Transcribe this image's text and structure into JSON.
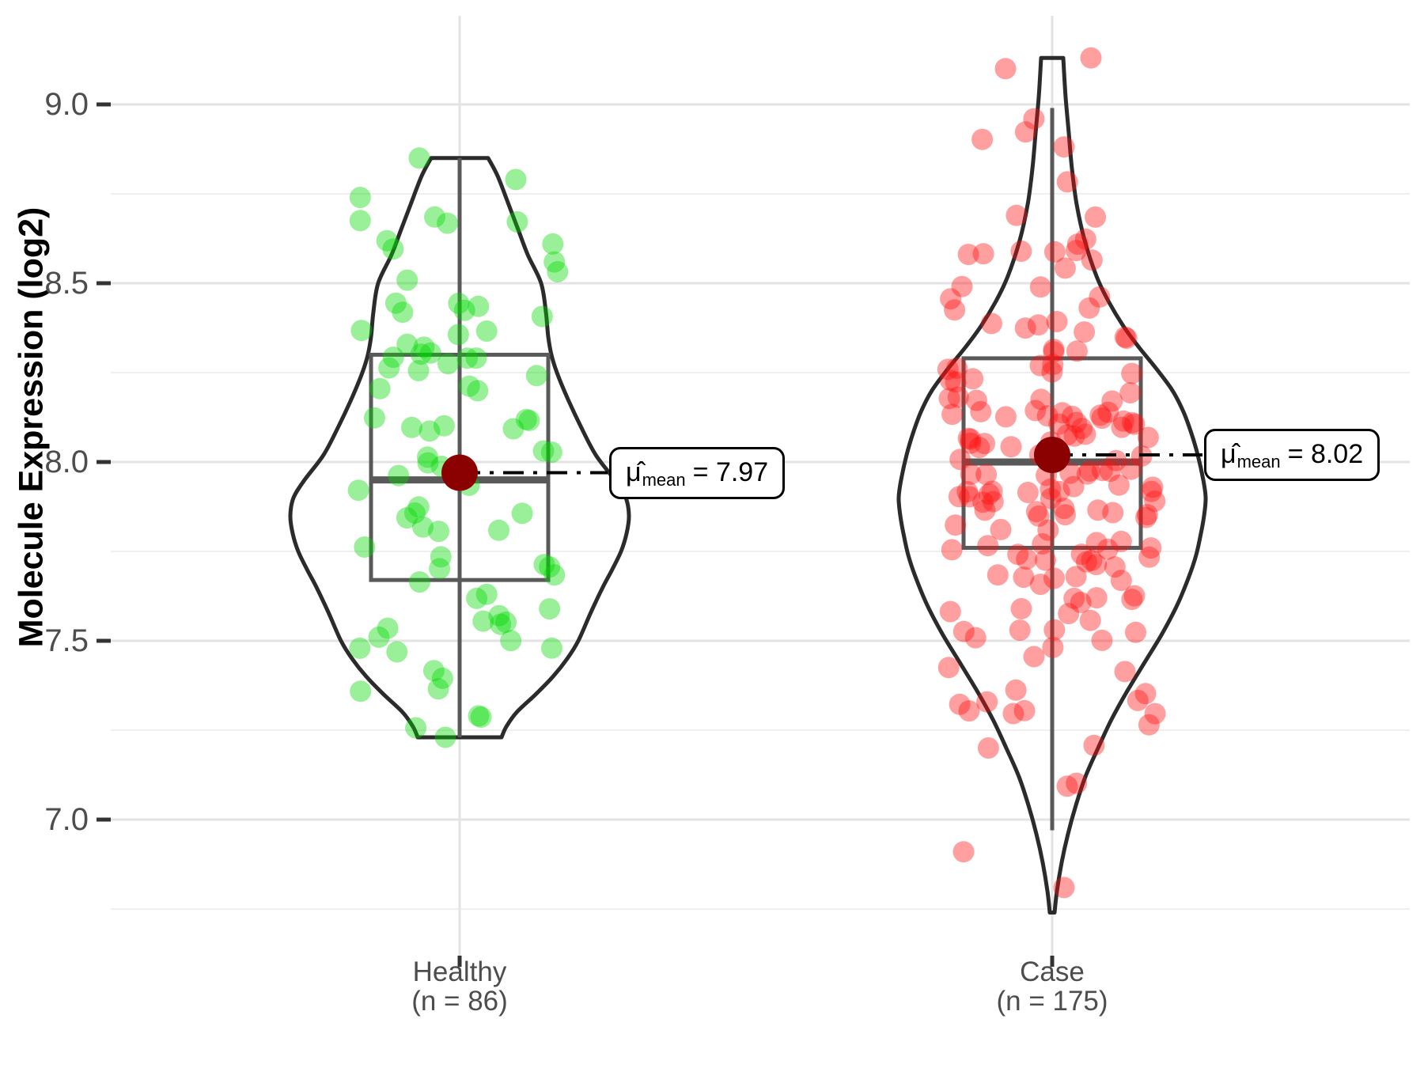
{
  "figure": {
    "background": "#ffffff"
  },
  "y_axis": {
    "title": "Molecule Expression (log2)",
    "tick_labels": [
      "9.0",
      "8.5",
      "8.0",
      "7.5",
      "7.0"
    ],
    "tick_values": [
      9.0,
      8.5,
      8.0,
      7.5,
      7.0
    ],
    "minor_values": [
      8.75,
      8.25,
      7.75,
      7.25,
      6.75
    ],
    "text_color": "#4d4d4d"
  },
  "x_axis": {
    "categories": [
      {
        "label": "Healthy",
        "sub_label": "(n = 86)"
      },
      {
        "label": "Case",
        "sub_label": "(n = 175)"
      }
    ],
    "text_color": "#4d4d4d"
  },
  "annotations": [
    {
      "symbol": "μ̂",
      "subscript": "mean",
      "rest": "= 7.97"
    },
    {
      "symbol": "μ̂",
      "subscript": "mean",
      "rest": "= 8.02"
    }
  ],
  "chart_data": {
    "type": "violin+boxplot+jitter",
    "title": "",
    "xlabel": "",
    "ylabel": "Molecule Expression (log2)",
    "ylim": [
      6.55,
      9.3
    ],
    "grid": true,
    "legend": false,
    "groups": [
      {
        "name": "Healthy",
        "n": 86,
        "mean": 7.97,
        "median": 7.95,
        "q1": 7.67,
        "q3": 8.3,
        "whisker_low": 7.23,
        "whisker_high": 8.85,
        "data_min": 7.23,
        "data_max": 8.85,
        "point_color": "#00d900",
        "violin_profile": [
          [
            8.85,
            36
          ],
          [
            8.8,
            48
          ],
          [
            8.72,
            62
          ],
          [
            8.65,
            74
          ],
          [
            8.58,
            86
          ],
          [
            8.5,
            103
          ],
          [
            8.42,
            109
          ],
          [
            8.35,
            112
          ],
          [
            8.3,
            116
          ],
          [
            8.25,
            123
          ],
          [
            8.18,
            136
          ],
          [
            8.1,
            153
          ],
          [
            8.02,
            172
          ],
          [
            7.95,
            196
          ],
          [
            7.9,
            210
          ],
          [
            7.85,
            214
          ],
          [
            7.8,
            211
          ],
          [
            7.75,
            204
          ],
          [
            7.7,
            193
          ],
          [
            7.65,
            181
          ],
          [
            7.58,
            166
          ],
          [
            7.5,
            150
          ],
          [
            7.45,
            136
          ],
          [
            7.4,
            118
          ],
          [
            7.35,
            96
          ],
          [
            7.3,
            72
          ],
          [
            7.26,
            59
          ],
          [
            7.23,
            53
          ]
        ],
        "pinned_points": [
          [
            8.85,
            -51
          ],
          [
            8.79,
            71
          ],
          [
            7.23,
            -18
          ],
          [
            7.29,
            24
          ]
        ],
        "point_distribution": {
          "mean": 7.95,
          "sd": 0.38,
          "min": 7.25,
          "max": 8.83
        }
      },
      {
        "name": "Case",
        "n": 175,
        "mean": 8.02,
        "median": 8.0,
        "q1": 7.76,
        "q3": 8.29,
        "whisker_low": 6.97,
        "whisker_high": 8.99,
        "data_min": 6.74,
        "data_max": 9.13,
        "point_color": "#ff0f0f",
        "violin_profile": [
          [
            9.13,
            14
          ],
          [
            9.02,
            17
          ],
          [
            8.92,
            21
          ],
          [
            8.82,
            25
          ],
          [
            8.72,
            31
          ],
          [
            8.62,
            41
          ],
          [
            8.52,
            56
          ],
          [
            8.45,
            71
          ],
          [
            8.38,
            90
          ],
          [
            8.32,
            110
          ],
          [
            8.26,
            132
          ],
          [
            8.2,
            152
          ],
          [
            8.14,
            166
          ],
          [
            8.08,
            176
          ],
          [
            8.02,
            184
          ],
          [
            7.95,
            191
          ],
          [
            7.9,
            194
          ],
          [
            7.85,
            192
          ],
          [
            7.8,
            188
          ],
          [
            7.74,
            182
          ],
          [
            7.68,
            173
          ],
          [
            7.6,
            158
          ],
          [
            7.52,
            139
          ],
          [
            7.44,
            117
          ],
          [
            7.36,
            95
          ],
          [
            7.28,
            75
          ],
          [
            7.2,
            58
          ],
          [
            7.12,
            42
          ],
          [
            7.04,
            30
          ],
          [
            6.96,
            20
          ],
          [
            6.88,
            12
          ],
          [
            6.8,
            6
          ],
          [
            6.74,
            3
          ]
        ],
        "pinned_points": [
          [
            9.13,
            49
          ],
          [
            9.1,
            -59
          ],
          [
            6.91,
            -112
          ],
          [
            6.81,
            15
          ]
        ],
        "point_distribution": {
          "mean": 8.01,
          "sd": 0.4,
          "min": 6.99,
          "max": 8.98
        }
      }
    ]
  },
  "style": {
    "violin_stroke": "#2b2b2b",
    "box_stroke": "#595959",
    "grid_major": "#e3e3e3",
    "grid_minor": "#efefef",
    "tick_color": "#333333",
    "mean_dot_color": "#8b0000",
    "point_opacity": 0.4,
    "annotation_line_color": "#000000"
  }
}
